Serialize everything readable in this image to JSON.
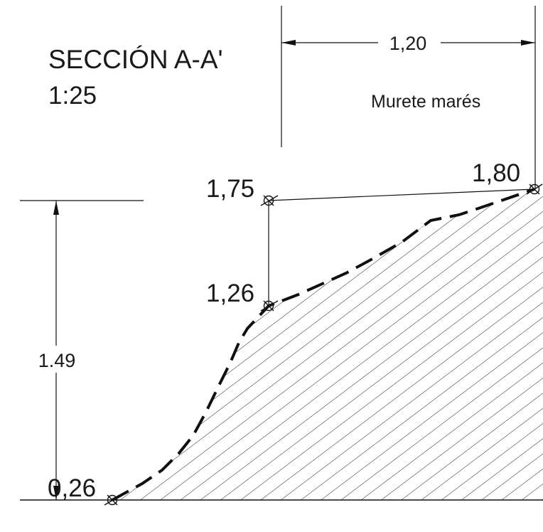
{
  "section": {
    "title": "SECCIÓN A-A'",
    "scale": "1:25"
  },
  "dimensions": {
    "width": "1,20",
    "height": "1.49"
  },
  "labels": {
    "wall": "Murete marés"
  },
  "elevations": [
    "1,75",
    "1,80",
    "1,26",
    "0,26"
  ]
}
